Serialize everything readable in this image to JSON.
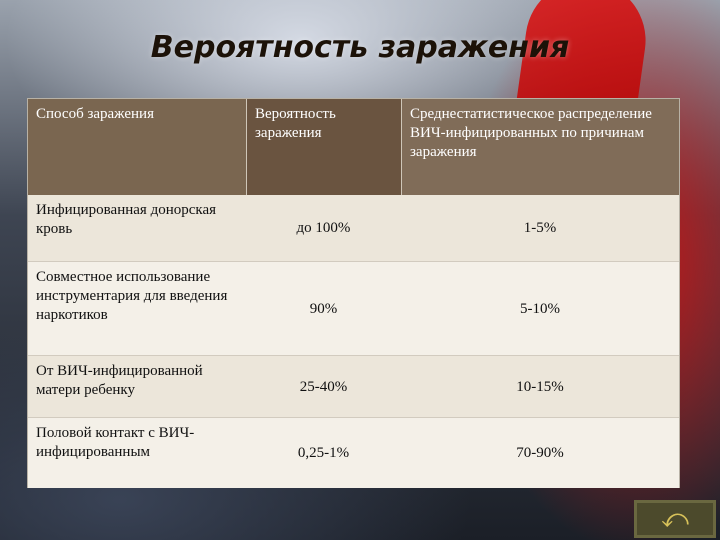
{
  "slide": {
    "title": "Вероятность заражения"
  },
  "table": {
    "headers": [
      "Способ заражения",
      "Вероятность заражения",
      "Среднестатистическое распределение ВИЧ-инфицированных по причинам заражения"
    ],
    "rows": [
      [
        "Инфицированная донорская кровь",
        "до 100%",
        "1-5%"
      ],
      [
        "Совместное использование инструментария для введения наркотиков",
        "90%",
        "5-10%"
      ],
      [
        "От ВИЧ-инфицированной матери ребенку",
        "25-40%",
        "10-15%"
      ],
      [
        "Половой контакт с ВИЧ-инфицированным",
        "0,25-1%",
        "70-90%"
      ]
    ]
  },
  "nav": {
    "icon": "return-arrow-icon"
  }
}
